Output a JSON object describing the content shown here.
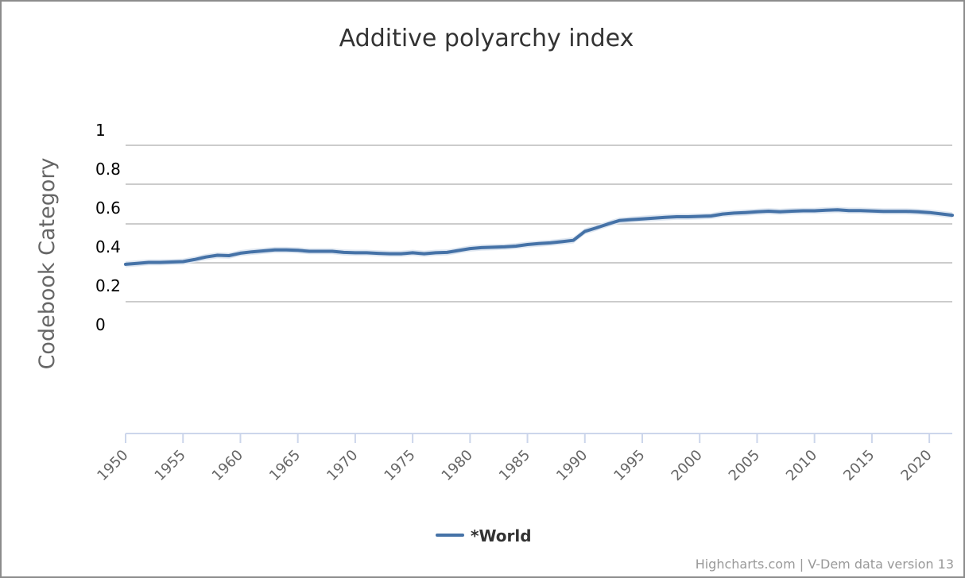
{
  "chart_data": {
    "type": "line",
    "title": "Additive polyarchy index",
    "ylabel": "Codebook Category",
    "xlabel": "",
    "ylim": [
      0,
      1
    ],
    "y_ticks": [
      "0",
      "0.2",
      "0.4",
      "0.6",
      "0.8",
      "1"
    ],
    "xlim": [
      1950,
      2022
    ],
    "x_ticks": [
      "1950",
      "1955",
      "1960",
      "1965",
      "1970",
      "1975",
      "1980",
      "1985",
      "1990",
      "1995",
      "2000",
      "2005",
      "2010",
      "2015",
      "2020"
    ],
    "grid": true,
    "legend_position": "bottom-center",
    "series": [
      {
        "name": "*World",
        "color": "#4572a7",
        "band_color": "#dbe4f0",
        "x": [
          1950,
          1951,
          1952,
          1953,
          1954,
          1955,
          1956,
          1957,
          1958,
          1959,
          1960,
          1961,
          1962,
          1963,
          1964,
          1965,
          1966,
          1967,
          1968,
          1969,
          1970,
          1971,
          1972,
          1973,
          1974,
          1975,
          1976,
          1977,
          1978,
          1979,
          1980,
          1981,
          1982,
          1983,
          1984,
          1985,
          1986,
          1987,
          1988,
          1989,
          1990,
          1991,
          1992,
          1993,
          1994,
          1995,
          1996,
          1997,
          1998,
          1999,
          2000,
          2001,
          2002,
          2003,
          2004,
          2005,
          2006,
          2007,
          2008,
          2009,
          2010,
          2011,
          2012,
          2013,
          2014,
          2015,
          2016,
          2017,
          2018,
          2019,
          2020,
          2021,
          2022
        ],
        "values": [
          0.4,
          0.405,
          0.41,
          0.41,
          0.412,
          0.414,
          0.425,
          0.438,
          0.447,
          0.445,
          0.458,
          0.465,
          0.47,
          0.475,
          0.475,
          0.473,
          0.468,
          0.468,
          0.468,
          0.462,
          0.46,
          0.46,
          0.457,
          0.455,
          0.455,
          0.46,
          0.455,
          0.46,
          0.462,
          0.472,
          0.482,
          0.487,
          0.489,
          0.491,
          0.495,
          0.503,
          0.508,
          0.512,
          0.518,
          0.525,
          0.572,
          0.59,
          0.61,
          0.628,
          0.633,
          0.637,
          0.641,
          0.645,
          0.648,
          0.648,
          0.65,
          0.652,
          0.662,
          0.667,
          0.67,
          0.674,
          0.677,
          0.674,
          0.677,
          0.679,
          0.679,
          0.682,
          0.684,
          0.68,
          0.68,
          0.678,
          0.676,
          0.676,
          0.676,
          0.674,
          0.67,
          0.663,
          0.656
        ]
      }
    ]
  },
  "credits": "Highcharts.com | V-Dem data version 13"
}
